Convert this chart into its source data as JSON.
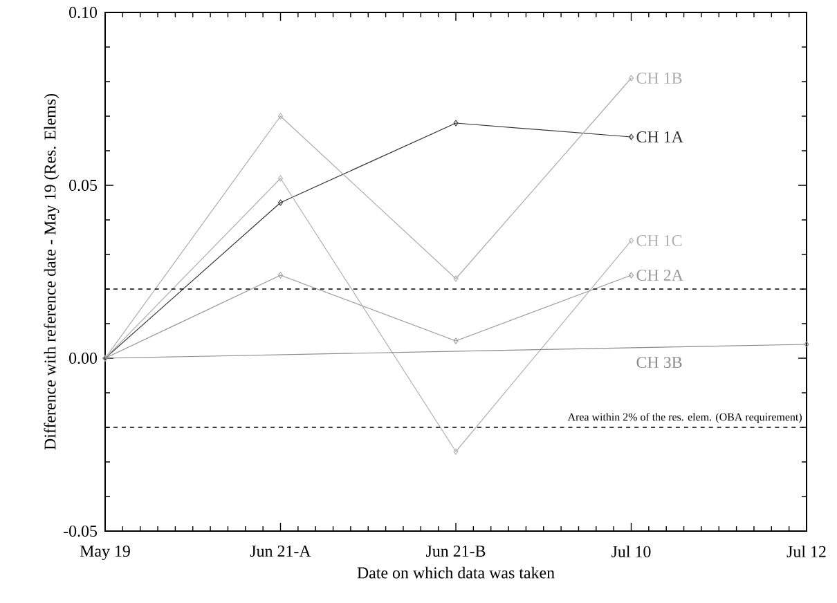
{
  "chart_data": {
    "type": "line",
    "xlabel": "Date on which data was taken",
    "ylabel": "Difference with reference date - May 19 (Res. Elems)",
    "categories": [
      "May 19",
      "Jun 21-A",
      "Jun 21-B",
      "Jul 10",
      "Jul 12"
    ],
    "series": [
      {
        "name": "CH 1A",
        "color": "#333333",
        "values": [
          0,
          0.045,
          0.068,
          0.064,
          null
        ]
      },
      {
        "name": "CH 1B",
        "color": "#ababab",
        "values": [
          0,
          0.07,
          0.023,
          0.081,
          null
        ]
      },
      {
        "name": "CH 1C",
        "color": "#b0b0b0",
        "values": [
          0,
          0.052,
          -0.027,
          0.034,
          null
        ]
      },
      {
        "name": "CH 2A",
        "color": "#999999",
        "values": [
          0,
          0.024,
          0.005,
          0.024,
          null
        ]
      },
      {
        "name": "CH 3B",
        "color": "#8c8c8c",
        "values": [
          0,
          null,
          null,
          null,
          0.004
        ]
      }
    ],
    "ylim": [
      -0.05,
      0.1
    ],
    "yticks": [
      {
        "value": -0.05,
        "label": "-0.05"
      },
      {
        "value": 0,
        "label": "0.00"
      },
      {
        "value": 0.05,
        "label": "0.05"
      },
      {
        "value": 0.1,
        "label": "0.10"
      }
    ],
    "ref_lines": [
      {
        "axis": "y",
        "value": 0.02,
        "color": "#000000",
        "line_style": "dashed"
      },
      {
        "axis": "y",
        "value": -0.02,
        "color": "#000000",
        "line_style": "dashed",
        "label": "Area within 2% of the res. elem. (OBA requirement)"
      }
    ],
    "marker": "diamond",
    "line_style": "solid",
    "grid": false,
    "legend": false
  }
}
